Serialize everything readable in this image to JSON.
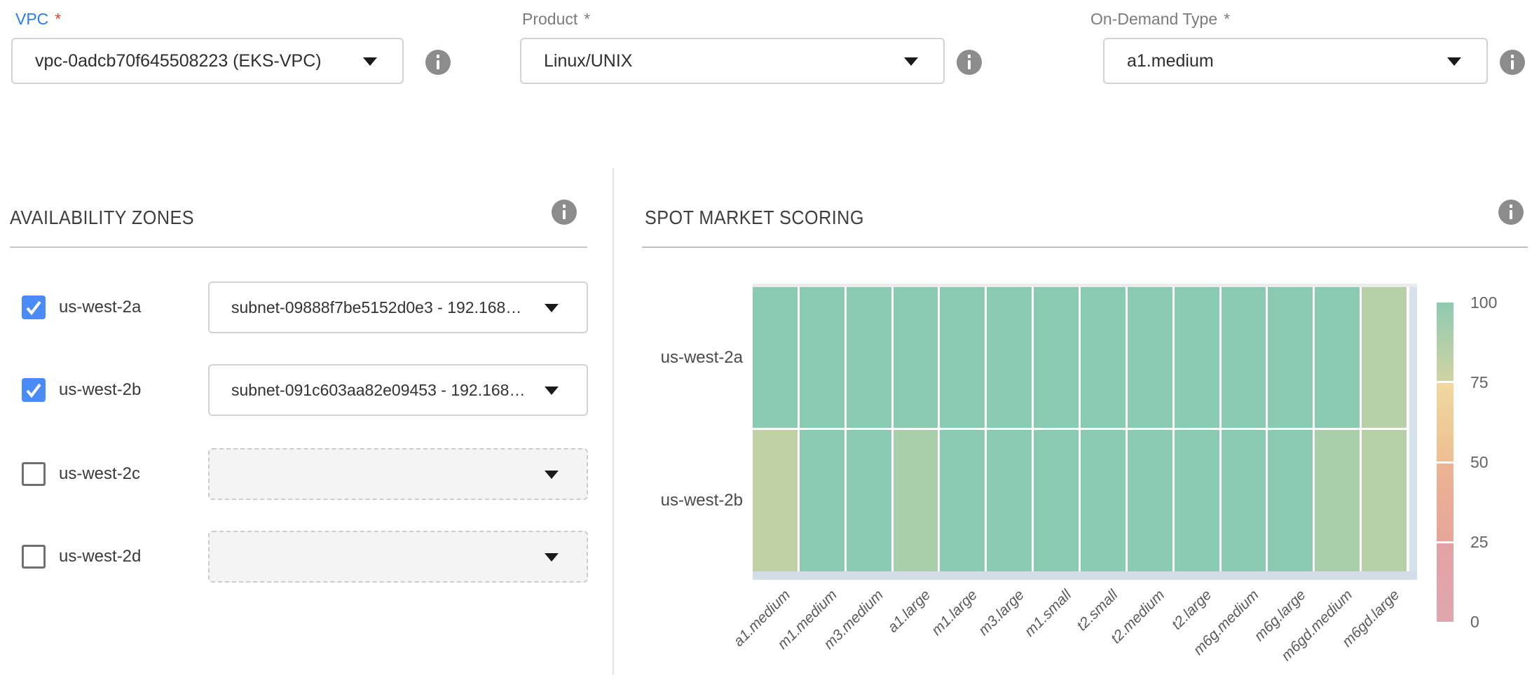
{
  "fields": {
    "vpc": {
      "label": "VPC",
      "required": "*",
      "value": "vpc-0adcb70f645508223 (EKS-VPC)"
    },
    "product": {
      "label": "Product",
      "required": "*",
      "value": "Linux/UNIX"
    },
    "on_demand_type": {
      "label": "On-Demand Type",
      "required": "*",
      "value": "a1.medium"
    }
  },
  "availability_zones": {
    "title": "AVAILABILITY ZONES",
    "rows": [
      {
        "zone": "us-west-2a",
        "checked": true,
        "subnet": "subnet-09888f7be5152d0e3 - 192.168…"
      },
      {
        "zone": "us-west-2b",
        "checked": true,
        "subnet": "subnet-091c603aa82e09453 - 192.168…"
      },
      {
        "zone": "us-west-2c",
        "checked": false,
        "subnet": ""
      },
      {
        "zone": "us-west-2d",
        "checked": false,
        "subnet": ""
      }
    ]
  },
  "spot_market_scoring": {
    "title": "SPOT MARKET SCORING",
    "chart_data": {
      "type": "heatmap",
      "rows": [
        "us-west-2a",
        "us-west-2b"
      ],
      "columns": [
        "a1.medium",
        "m1.medium",
        "m3.medium",
        "a1.large",
        "m1.large",
        "m3.large",
        "m1.small",
        "t2.small",
        "t2.medium",
        "t2.large",
        "m6g.medium",
        "m6g.large",
        "m6gd.medium",
        "m6gd.large"
      ],
      "values": [
        [
          98,
          98,
          98,
          98,
          98,
          98,
          98,
          98,
          98,
          98,
          98,
          98,
          98,
          82
        ],
        [
          79,
          98,
          98,
          87,
          98,
          98,
          98,
          98,
          98,
          98,
          98,
          98,
          87,
          83
        ]
      ],
      "value_range": [
        0,
        100
      ],
      "colorbar_ticks": [
        100,
        75,
        50,
        25,
        0
      ],
      "colorscale": [
        [
          0,
          "#dfa6ae"
        ],
        [
          25,
          "#e4a4a1"
        ],
        [
          50,
          "#edb892"
        ],
        [
          75,
          "#ccd3a3"
        ],
        [
          100,
          "#84c9b1"
        ]
      ],
      "colorbar_segments": [
        [
          "#8fcab1",
          "#cfd3a3"
        ],
        [
          "#f0d9a0",
          "#edbe92"
        ],
        [
          "#ecb392",
          "#e6a69b"
        ],
        [
          "#e3a3a4",
          "#dfa6ae"
        ]
      ]
    }
  }
}
